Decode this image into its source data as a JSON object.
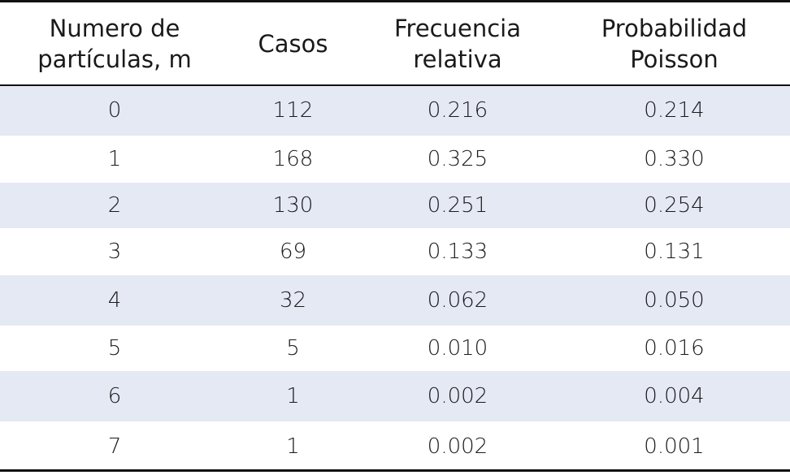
{
  "table": {
    "headers": [
      [
        "Numero de",
        "partículas, m"
      ],
      [
        "Casos"
      ],
      [
        "Frecuencia",
        "relativa"
      ],
      [
        "Probabilidad",
        "Poisson"
      ]
    ],
    "rows": [
      [
        "0",
        "112",
        "0.216",
        "0.214"
      ],
      [
        "1",
        "168",
        "0.325",
        "0.330"
      ],
      [
        "2",
        "130",
        "0.251",
        "0.254"
      ],
      [
        "3",
        "69",
        "0.133",
        "0.131"
      ],
      [
        "4",
        "32",
        "0.062",
        "0.050"
      ],
      [
        "5",
        "5",
        "0.010",
        "0.016"
      ],
      [
        "6",
        "1",
        "0.002",
        "0.004"
      ],
      [
        "7",
        "1",
        "0.002",
        "0.001"
      ]
    ],
    "shaded_row_color": "#e4e9f4",
    "rule_color": "#111111"
  }
}
